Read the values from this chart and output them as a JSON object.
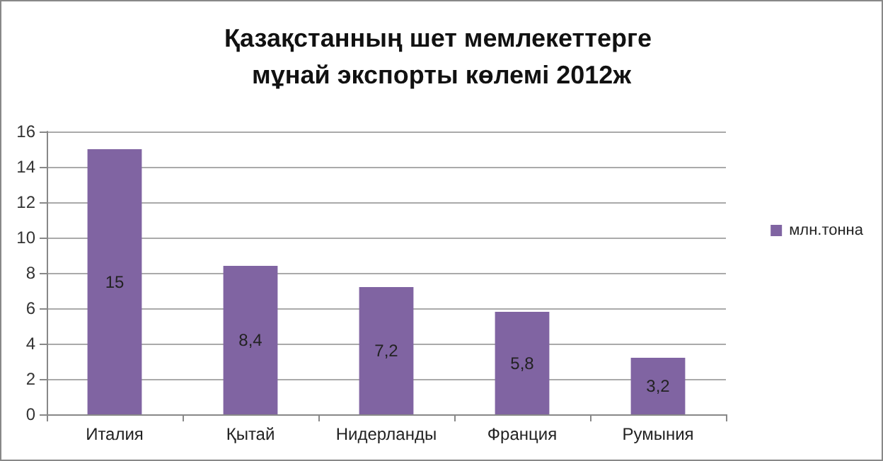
{
  "chart_data": {
    "type": "bar",
    "title": "Қазақстанның шет мемлекеттерге мұнай экспорты көлемі 2012ж",
    "categories": [
      "Италия",
      "Қытай",
      "Нидерланды",
      "Франция",
      "Румыния"
    ],
    "series": [
      {
        "name": "млн.тонна",
        "color": "#8064a2",
        "values": [
          15,
          8.4,
          7.2,
          5.8,
          3.2
        ],
        "value_labels": [
          "15",
          "8,4",
          "7,2",
          "5,8",
          "3,2"
        ]
      }
    ],
    "ylim": [
      0,
      16
    ],
    "yticks": [
      0,
      2,
      4,
      6,
      8,
      10,
      12,
      14,
      16
    ],
    "grid": "y",
    "legend": "right"
  }
}
